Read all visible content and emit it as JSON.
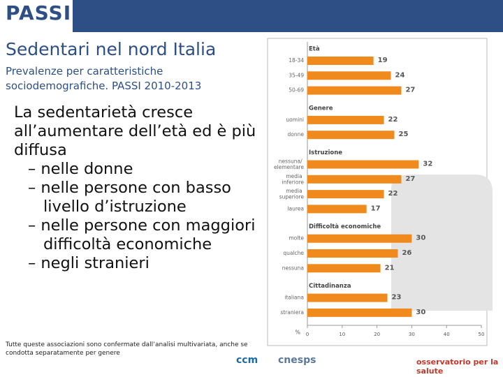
{
  "logo": "PASSI",
  "title": "Sedentari nel nord Italia",
  "subtitle": "Prevalenze per caratteristiche sociodemografiche. PASSI 2010-2013",
  "bullets": [
    "La sedentarietà cresce all’aumentare dell’età ed è più diffusa",
    "– nelle donne",
    "– nelle persone con basso livello d’istruzione",
    "– nelle persone con maggiori difficoltà economiche",
    "– negli stranieri"
  ],
  "footnote": "Tutte queste associazioni sono confermate dall’analisi multivariata, anche se condotta separatamente per genere",
  "logos": [
    "ccm",
    "cnesps",
    "osservatorio per la salute"
  ],
  "chart_data": {
    "type": "bar",
    "color": "#f08a1c",
    "x_label": "%",
    "groups": [
      {
        "name": "Età",
        "categories": [
          "18-34",
          "35-49",
          "50-69"
        ],
        "values": [
          19,
          24,
          27
        ]
      },
      {
        "name": "Genere",
        "categories": [
          "uomini",
          "donne"
        ],
        "values": [
          22,
          25
        ]
      },
      {
        "name": "Istruzione",
        "categories": [
          "nessuna/ elementare",
          "media inferiore",
          "media superiore",
          "laurea"
        ],
        "values": [
          32,
          27,
          22,
          17
        ]
      },
      {
        "name": "Difficoltà economiche",
        "categories": [
          "molte",
          "qualche",
          "nessuna"
        ],
        "values": [
          30,
          26,
          21
        ]
      },
      {
        "name": "Cittadinanza",
        "categories": [
          "italiana",
          "straniera"
        ],
        "values": [
          23,
          30
        ]
      }
    ],
    "xlim": [
      0,
      50
    ],
    "xticks": [
      0,
      10,
      20,
      30,
      40,
      50
    ]
  }
}
